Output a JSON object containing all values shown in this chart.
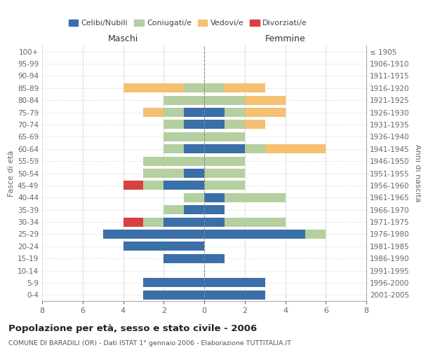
{
  "age_groups": [
    "0-4",
    "5-9",
    "10-14",
    "15-19",
    "20-24",
    "25-29",
    "30-34",
    "35-39",
    "40-44",
    "45-49",
    "50-54",
    "55-59",
    "60-64",
    "65-69",
    "70-74",
    "75-79",
    "80-84",
    "85-89",
    "90-94",
    "95-99",
    "100+"
  ],
  "birth_years": [
    "2001-2005",
    "1996-2000",
    "1991-1995",
    "1986-1990",
    "1981-1985",
    "1976-1980",
    "1971-1975",
    "1966-1970",
    "1961-1965",
    "1956-1960",
    "1951-1955",
    "1946-1950",
    "1941-1945",
    "1936-1940",
    "1931-1935",
    "1926-1930",
    "1921-1925",
    "1916-1920",
    "1911-1915",
    "1906-1910",
    "≤ 1905"
  ],
  "male": {
    "celibi": [
      3,
      3,
      0,
      2,
      4,
      5,
      2,
      1,
      0,
      2,
      1,
      0,
      1,
      0,
      1,
      1,
      0,
      0,
      0,
      0,
      0
    ],
    "coniugati": [
      0,
      0,
      0,
      0,
      0,
      0,
      1,
      1,
      1,
      1,
      2,
      3,
      1,
      2,
      1,
      1,
      2,
      1,
      0,
      0,
      0
    ],
    "vedovi": [
      0,
      0,
      0,
      0,
      0,
      0,
      0,
      0,
      0,
      0,
      0,
      0,
      0,
      0,
      0,
      1,
      0,
      3,
      0,
      0,
      0
    ],
    "divorziati": [
      0,
      0,
      0,
      0,
      0,
      0,
      1,
      0,
      0,
      1,
      0,
      0,
      0,
      0,
      0,
      0,
      0,
      0,
      0,
      0,
      0
    ]
  },
  "female": {
    "nubili": [
      3,
      3,
      0,
      1,
      0,
      5,
      1,
      1,
      1,
      0,
      0,
      0,
      2,
      0,
      1,
      1,
      0,
      0,
      0,
      0,
      0
    ],
    "coniugate": [
      0,
      0,
      0,
      0,
      0,
      1,
      3,
      0,
      3,
      2,
      2,
      2,
      1,
      2,
      1,
      1,
      2,
      1,
      0,
      0,
      0
    ],
    "vedove": [
      0,
      0,
      0,
      0,
      0,
      0,
      0,
      0,
      0,
      0,
      0,
      0,
      3,
      0,
      1,
      2,
      2,
      2,
      0,
      0,
      0
    ],
    "divorziate": [
      0,
      0,
      0,
      0,
      0,
      0,
      0,
      0,
      0,
      0,
      0,
      0,
      0,
      0,
      0,
      0,
      0,
      0,
      0,
      0,
      0
    ]
  },
  "colors": {
    "celibi_nubili": "#3a6fa8",
    "coniugati": "#b5cfa0",
    "vedovi": "#f5c071",
    "divorziati": "#d94040"
  },
  "xlim": 8,
  "title": "Popolazione per età, sesso e stato civile - 2006",
  "subtitle": "COMUNE DI BARADILI (OR) - Dati ISTAT 1° gennaio 2006 - Elaborazione TUTTITALIA.IT",
  "ylabel_left": "Fasce di età",
  "ylabel_right": "Anni di nascita",
  "xlabel_maschi": "Maschi",
  "xlabel_femmine": "Femmine",
  "grid_color": "#dddddd"
}
